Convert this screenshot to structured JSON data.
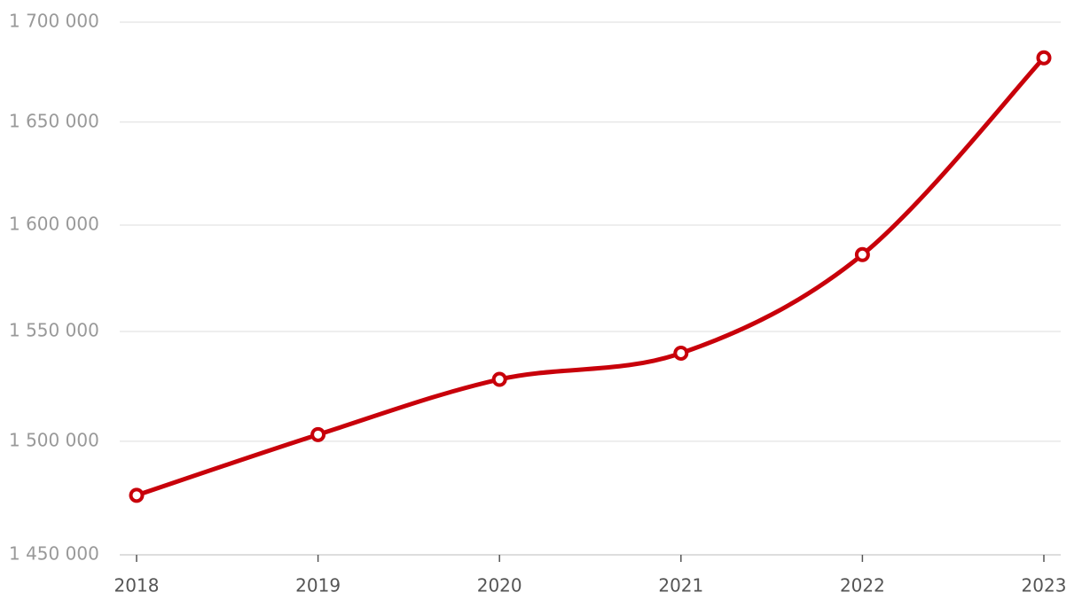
{
  "chart_data": {
    "type": "line",
    "categories": [
      "2018",
      "2019",
      "2020",
      "2021",
      "2022",
      "2023"
    ],
    "series": [
      {
        "color": "#c8000a",
        "values": [
          1476000,
          1503000,
          1528000,
          1540000,
          1586000,
          1682000
        ]
      }
    ],
    "ylim": [
      1450000,
      1700000
    ],
    "log_scale": true,
    "grid": true,
    "yticks": [
      {
        "value": 1450000,
        "label": "1 450 000"
      },
      {
        "value": 1500000,
        "label": "1 500 000"
      },
      {
        "value": 1550000,
        "label": "1 550 000"
      },
      {
        "value": 1600000,
        "label": "1 600 000"
      },
      {
        "value": 1650000,
        "label": "1 650 000"
      },
      {
        "value": 1700000,
        "label": "1 700 000"
      }
    ]
  }
}
